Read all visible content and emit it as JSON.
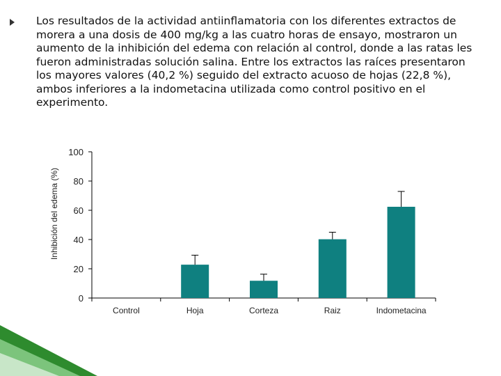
{
  "slide": {
    "paragraph": "Los resultados de la actividad antiinflamatoria con los diferentes extractos de morera a una dosis de 400 mg/kg a las cuatro horas de ensayo, mostraron un aumento de la inhibición del edema con relación al control, donde a las ratas les fueron administradas solución salina. Entre los extractos las raíces presentaron los mayores valores (40,2 %) seguido del extracto acuoso de hojas (22,8 %), ambos inferiores a la indometacina utilizada como control positivo en el experimento."
  },
  "chart_data": {
    "type": "bar",
    "categories": [
      "Control",
      "Hoja",
      "Corteza",
      "Raiz",
      "Indometacina"
    ],
    "values": [
      0,
      22.8,
      11.8,
      40.2,
      62.4
    ],
    "errors": [
      0,
      6.5,
      4.5,
      4.8,
      10.5
    ],
    "ylabel": "Inhibición del edema (%)",
    "ylim": [
      0,
      100
    ],
    "yticks": [
      0,
      20,
      40,
      60,
      80,
      100
    ],
    "grid": false,
    "bar_color": "#0f8080",
    "error_bar_color": "#000000"
  },
  "decoration": {
    "accent_colors": [
      "#2e8b2e",
      "#7cc47c",
      "#c8e6c8"
    ]
  }
}
